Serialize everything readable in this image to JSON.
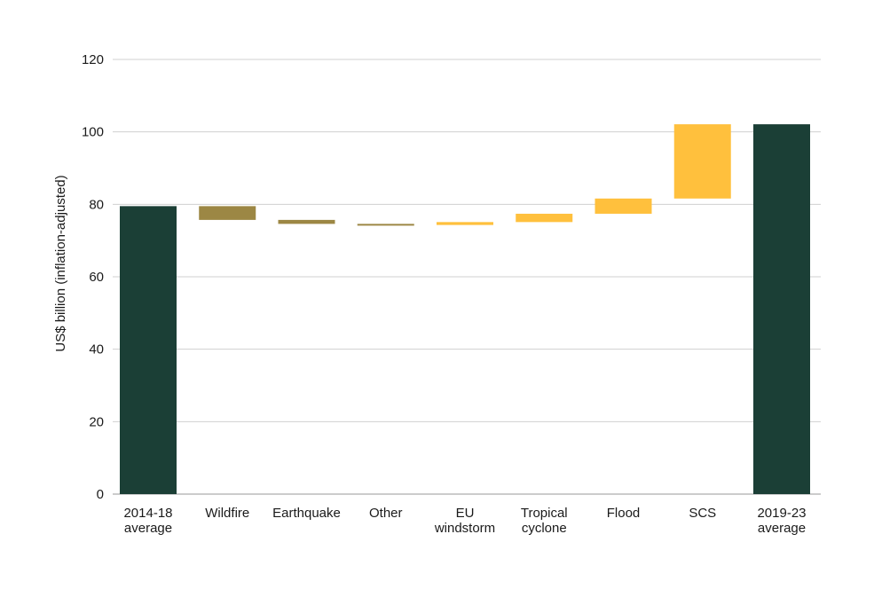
{
  "chart_data": {
    "type": "bar",
    "subtype": "waterfall",
    "title": "",
    "xlabel": "",
    "ylabel": "US$ billion (inflation-adjusted)",
    "ylim": [
      0,
      120
    ],
    "yticks": [
      0,
      20,
      40,
      60,
      80,
      100,
      120
    ],
    "grid": true,
    "legend": "none",
    "colors": {
      "total": "#1b3f36",
      "decrease": "#9c8744",
      "increase": "#ffc03d",
      "grid": "#d0d0d0",
      "text": "#1a1a1a"
    },
    "bars": [
      {
        "label": [
          "2014-18",
          "average"
        ],
        "kind": "total",
        "start": 0,
        "end": 79.5
      },
      {
        "label": [
          "Wildfire"
        ],
        "kind": "decrease",
        "start": 79.5,
        "end": 75.7
      },
      {
        "label": [
          "Earthquake"
        ],
        "kind": "decrease",
        "start": 75.7,
        "end": 74.6
      },
      {
        "label": [
          "Other"
        ],
        "kind": "decrease",
        "start": 74.6,
        "end": 74.3
      },
      {
        "label": [
          "EU",
          "windstorm"
        ],
        "kind": "increase",
        "start": 74.3,
        "end": 75.1
      },
      {
        "label": [
          "Tropical",
          "cyclone"
        ],
        "kind": "increase",
        "start": 75.1,
        "end": 77.4
      },
      {
        "label": [
          "Flood"
        ],
        "kind": "increase",
        "start": 77.4,
        "end": 81.6
      },
      {
        "label": [
          "SCS"
        ],
        "kind": "increase",
        "start": 81.6,
        "end": 102.1
      },
      {
        "label": [
          "2019-23",
          "average"
        ],
        "kind": "total",
        "start": 0,
        "end": 102.1
      }
    ]
  }
}
